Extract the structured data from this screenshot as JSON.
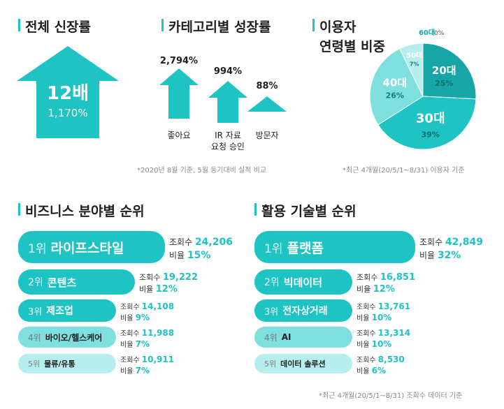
{
  "colors": {
    "accent": "#1ec3c3",
    "dark": "#17a5a5",
    "light": "#7fdfdf",
    "pale": "#b6eded"
  },
  "total": {
    "title": "전체 신장률",
    "big": "12배",
    "pct": "1,170%"
  },
  "category": {
    "title": "카테고리별 성장률",
    "note": "*2020년 8월 기준, 5월 동기대비 실적 비교",
    "items": [
      {
        "pct": "2,794%",
        "label": "좋아요",
        "label2": ""
      },
      {
        "pct": "994%",
        "label": "IR 자료",
        "label2": "요청 승인"
      },
      {
        "pct": "88%",
        "label": "방문자",
        "label2": ""
      }
    ]
  },
  "age": {
    "title1": "이용자",
    "title2": "연령별 비중",
    "note": "*최근 4개월(20/5/1~8/31) 이용자 기준"
  },
  "chart_data": [
    {
      "type": "bar",
      "title": "카테고리별 성장률",
      "categories": [
        "좋아요",
        "IR 자료 요청 승인",
        "방문자"
      ],
      "values": [
        2794,
        994,
        88
      ]
    },
    {
      "type": "pie",
      "title": "이용자 연령별 비중",
      "labels": [
        "20대",
        "30대",
        "40대",
        "50대",
        "60대"
      ],
      "values": [
        25,
        39,
        26,
        7,
        0
      ],
      "value_labels": [
        "25%",
        "39%",
        "26%",
        "7%",
        "0%"
      ],
      "colors": [
        "#17a5a5",
        "#1ec3c3",
        "#7fdfdf",
        "#b6eded",
        "#e3f8f8"
      ]
    },
    {
      "type": "bar",
      "title": "비즈니스 분야별 순위",
      "categories": [
        "라이프스타일",
        "콘텐츠",
        "제조업",
        "바이오/헬스케어",
        "물류/유통"
      ],
      "series": [
        {
          "name": "조회수",
          "values": [
            24206,
            19222,
            14108,
            11988,
            10911
          ]
        },
        {
          "name": "비율",
          "values": [
            15,
            12,
            9,
            7,
            7
          ]
        }
      ]
    },
    {
      "type": "bar",
      "title": "활용 기술별 순위",
      "categories": [
        "플랫폼",
        "빅데이터",
        "전자상거래",
        "AI",
        "데이터 솔루션"
      ],
      "series": [
        {
          "name": "조회수",
          "values": [
            42849,
            16851,
            13761,
            13314,
            8530
          ]
        },
        {
          "name": "비율",
          "values": [
            32,
            12,
            10,
            10,
            6
          ]
        }
      ]
    }
  ],
  "business": {
    "title": "비즈니스 분야별 순위",
    "views_label": "조회수",
    "ratio_label": "비율",
    "rows": [
      {
        "rank": "1위",
        "name": "라이프스타일",
        "views": "24,206",
        "ratio": "15%"
      },
      {
        "rank": "2위",
        "name": "콘텐츠",
        "views": "19,222",
        "ratio": "12%"
      },
      {
        "rank": "3위",
        "name": "제조업",
        "views": "14,108",
        "ratio": "9%"
      },
      {
        "rank": "4위",
        "name": "바이오/헬스케어",
        "views": "11,988",
        "ratio": "7%"
      },
      {
        "rank": "5위",
        "name": "물류/유통",
        "views": "10,911",
        "ratio": "7%"
      }
    ]
  },
  "tech": {
    "title": "활용 기술별 순위",
    "views_label": "조회수",
    "ratio_label": "비율",
    "note": "*최근 4개월(20/5/1~8/31) 조회수 데이터 기준",
    "rows": [
      {
        "rank": "1위",
        "name": "플랫폼",
        "views": "42,849",
        "ratio": "32%"
      },
      {
        "rank": "2위",
        "name": "빅데이터",
        "views": "16,851",
        "ratio": "12%"
      },
      {
        "rank": "3위",
        "name": "전자상거래",
        "views": "13,761",
        "ratio": "10%"
      },
      {
        "rank": "4위",
        "name": "AI",
        "views": "13,314",
        "ratio": "10%"
      },
      {
        "rank": "5위",
        "name": "데이터 솔루션",
        "views": "8,530",
        "ratio": "6%"
      }
    ]
  }
}
